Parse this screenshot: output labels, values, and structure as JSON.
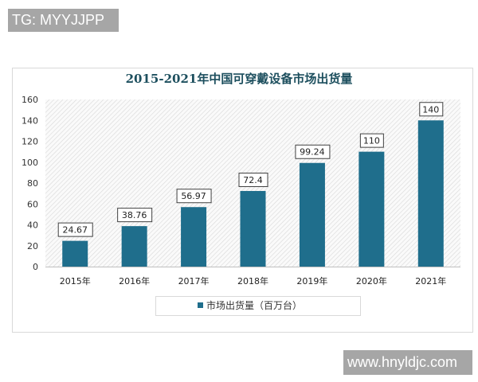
{
  "watermarks": {
    "top_left": "TG: MYYJJPP",
    "bottom_right": "www.hnyldjc.com"
  },
  "chart_data": {
    "type": "bar",
    "title": "2015-2021年中国可穿戴设备市场出货量",
    "categories": [
      "2015年",
      "2016年",
      "2017年",
      "2018年",
      "2019年",
      "2020年",
      "2021年"
    ],
    "series": [
      {
        "name": "市场出货量（百万台）",
        "values": [
          24.67,
          38.76,
          56.97,
          72.4,
          99.24,
          110,
          140
        ],
        "labels": [
          "24.67",
          "38.76",
          "56.97",
          "72.4",
          "99.24",
          "110",
          "140"
        ]
      }
    ],
    "yticks": [
      0,
      20,
      40,
      60,
      80,
      100,
      120,
      140,
      160
    ],
    "ylim": [
      0,
      160
    ],
    "legend_position": "bottom",
    "grid": false,
    "colors": {
      "bar": "#1f6e8c",
      "title": "#1d4f5e"
    }
  }
}
